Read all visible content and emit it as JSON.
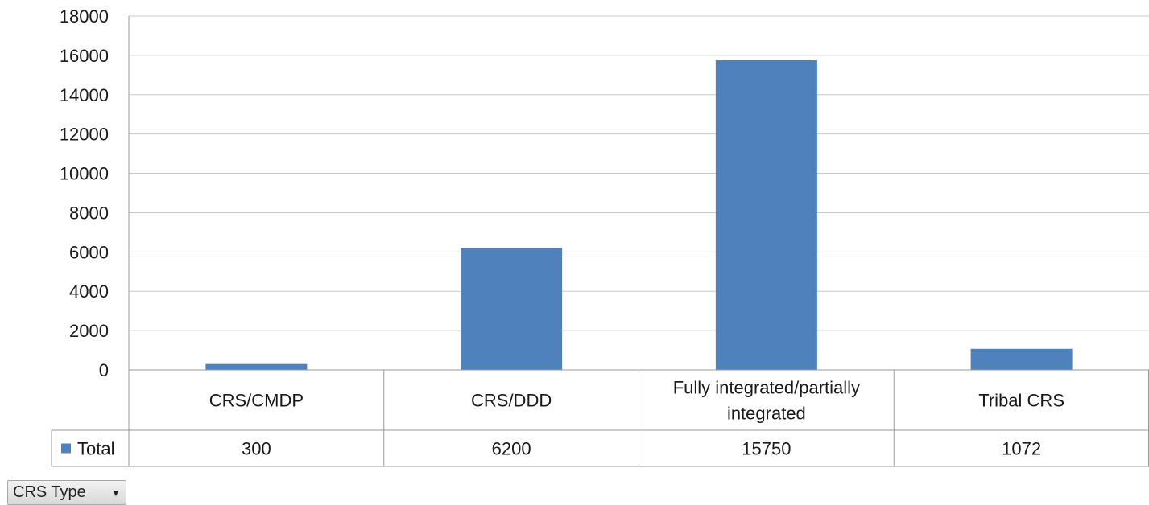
{
  "chart_data": {
    "type": "bar",
    "categories": [
      "CRS/CMDP",
      "CRS/DDD",
      "Fully integrated/partially integrated",
      "Tribal CRS"
    ],
    "category_lines": [
      [
        "CRS/CMDP"
      ],
      [
        "CRS/DDD"
      ],
      [
        "Fully integrated/partially",
        "integrated"
      ],
      [
        "Tribal CRS"
      ]
    ],
    "series": [
      {
        "name": "Total",
        "values": [
          300,
          6200,
          15750,
          1072
        ],
        "color": "#4f81bd"
      }
    ],
    "y_ticks": [
      "0",
      "2000",
      "4000",
      "6000",
      "8000",
      "10000",
      "12000",
      "14000",
      "16000",
      "18000"
    ],
    "ylim": [
      0,
      18000
    ],
    "grid": true,
    "legend": "data table",
    "data_table": true
  },
  "field_button": {
    "label": "CRS Type",
    "icon": "dropdown-arrow-icon"
  }
}
